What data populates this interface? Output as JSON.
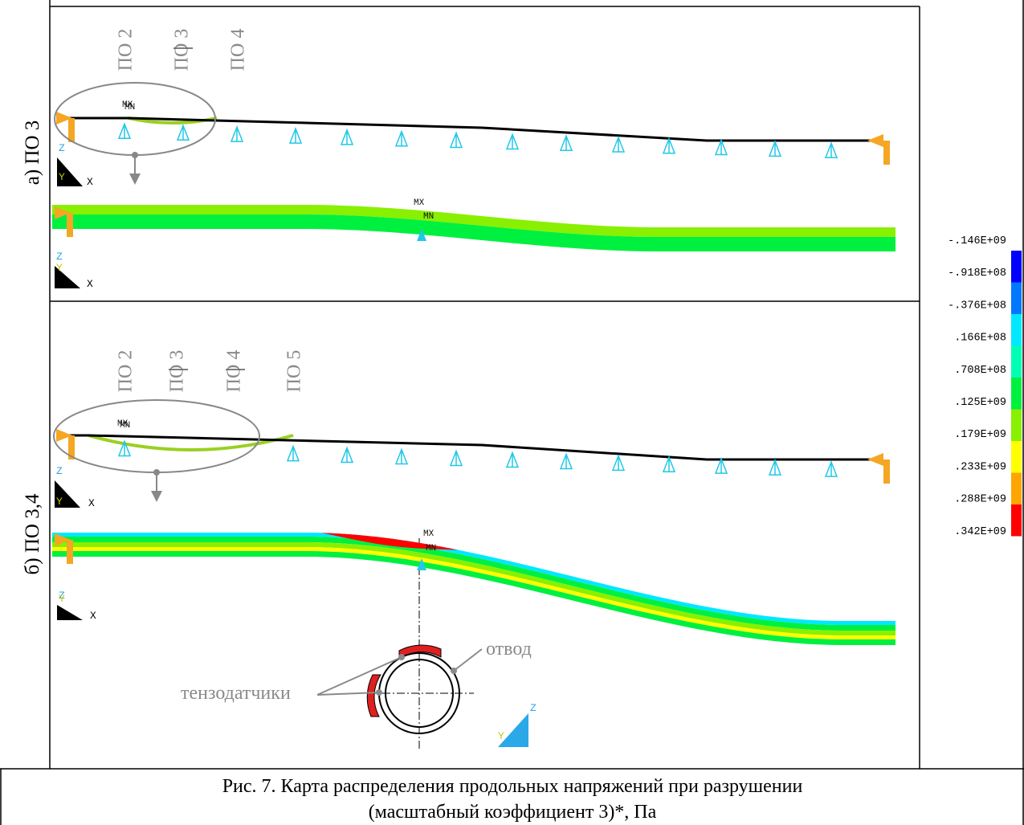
{
  "panels": [
    {
      "label": "а) ПО 3",
      "sections": [
        "ПО 2",
        "ПО 3",
        "ПО 4"
      ],
      "overview": {
        "max": "MX",
        "min": "MN",
        "axes": [
          "Z",
          "Y",
          "X"
        ]
      },
      "detail": {
        "max": "MX",
        "min": "MN",
        "axes": [
          "Z",
          "Y",
          "X"
        ]
      }
    },
    {
      "label": "б) ПО 3,4",
      "sections": [
        "ПО 2",
        "ПО 3",
        "ПО 4",
        "ПО 5"
      ],
      "overview": {
        "max": "MX",
        "min": "MN",
        "axes": [
          "Z",
          "Y",
          "X"
        ]
      },
      "detail": {
        "max": "MX",
        "min": "MN",
        "axes": [
          "Z",
          "Y",
          "X"
        ]
      },
      "section_view": {
        "labels": [
          "отвод",
          "тензодатчики"
        ],
        "axes": [
          "Y",
          "Z"
        ]
      }
    }
  ],
  "legend": {
    "labels": [
      "-.146E+09",
      "-.918E+08",
      "-.376E+08",
      ".166E+08",
      ".708E+08",
      ".125E+09",
      ".179E+09",
      ".233E+09",
      ".288E+09",
      ".342E+09"
    ],
    "colors": [
      "#0000ff",
      "#0078ff",
      "#00e8ff",
      "#00ffb4",
      "#00f040",
      "#88f000",
      "#ffff00",
      "#ffa500",
      "#ff0000"
    ]
  },
  "caption": [
    "Рис. 7. Карта распределения продольных напряжений при разрушении",
    "(масштабный коэффициент 3)*, Па"
  ]
}
